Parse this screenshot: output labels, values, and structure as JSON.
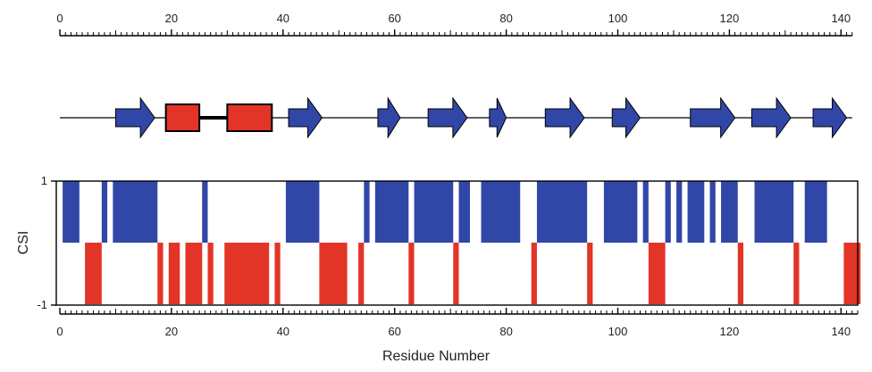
{
  "chart_data": [
    {
      "type": "topology",
      "xlim": [
        0,
        142
      ],
      "x_ticks": [
        "0",
        "20",
        "40",
        "60",
        "80",
        "100",
        "120",
        "140"
      ],
      "strand_color": "#3147a8",
      "helix_color": "#e23527",
      "elements": [
        {
          "type": "strand",
          "start": 10,
          "end": 17
        },
        {
          "type": "helix",
          "start": 19,
          "end": 25
        },
        {
          "type": "helix",
          "start": 30,
          "end": 38
        },
        {
          "type": "strand",
          "start": 41,
          "end": 47
        },
        {
          "type": "strand",
          "start": 57,
          "end": 61
        },
        {
          "type": "strand",
          "start": 66,
          "end": 73
        },
        {
          "type": "strand",
          "start": 77,
          "end": 80
        },
        {
          "type": "strand",
          "start": 87,
          "end": 94
        },
        {
          "type": "strand",
          "start": 99,
          "end": 104
        },
        {
          "type": "strand",
          "start": 113,
          "end": 121
        },
        {
          "type": "strand",
          "start": 124,
          "end": 131
        },
        {
          "type": "strand",
          "start": 135,
          "end": 141
        }
      ],
      "helix_connections": [
        [
          25,
          30
        ]
      ]
    },
    {
      "type": "bar",
      "xlabel": "Residue Number",
      "ylabel": "CSI",
      "xlim": [
        0,
        143
      ],
      "ylim": [
        -1,
        1
      ],
      "x_ticks": [
        "0",
        "20",
        "40",
        "60",
        "80",
        "100",
        "120",
        "140"
      ],
      "y_ticks": [
        "1",
        "-1"
      ],
      "positive_color": "#3147a8",
      "negative_color": "#e23527",
      "positive_ranges": [
        [
          0.5,
          3.5
        ],
        [
          7.5,
          8.5
        ],
        [
          9.5,
          17.5
        ],
        [
          25.5,
          26.5
        ],
        [
          40.5,
          46.5
        ],
        [
          54.5,
          55.5
        ],
        [
          56.5,
          62.5
        ],
        [
          63.5,
          70.5
        ],
        [
          71.5,
          73.5
        ],
        [
          75.5,
          82.5
        ],
        [
          85.5,
          94.5
        ],
        [
          97.5,
          103.5
        ],
        [
          104.5,
          105.5
        ],
        [
          108.5,
          109.5
        ],
        [
          110.5,
          111.5
        ],
        [
          112.5,
          115.5
        ],
        [
          116.5,
          117.5
        ],
        [
          118.5,
          121.5
        ],
        [
          124.5,
          131.5
        ],
        [
          133.5,
          137.5
        ]
      ],
      "negative_ranges": [
        [
          4.5,
          7.5
        ],
        [
          17.5,
          18.5
        ],
        [
          19.5,
          21.5
        ],
        [
          22.5,
          25.5
        ],
        [
          26.5,
          27.5
        ],
        [
          29.5,
          37.5
        ],
        [
          38.5,
          39.5
        ],
        [
          46.5,
          51.5
        ],
        [
          53.5,
          54.5
        ],
        [
          62.5,
          63.5
        ],
        [
          70.5,
          71.5
        ],
        [
          84.5,
          85.5
        ],
        [
          94.5,
          95.5
        ],
        [
          105.5,
          108.5
        ],
        [
          121.5,
          122.5
        ],
        [
          131.5,
          132.5
        ],
        [
          140.5,
          143.5
        ]
      ]
    }
  ]
}
